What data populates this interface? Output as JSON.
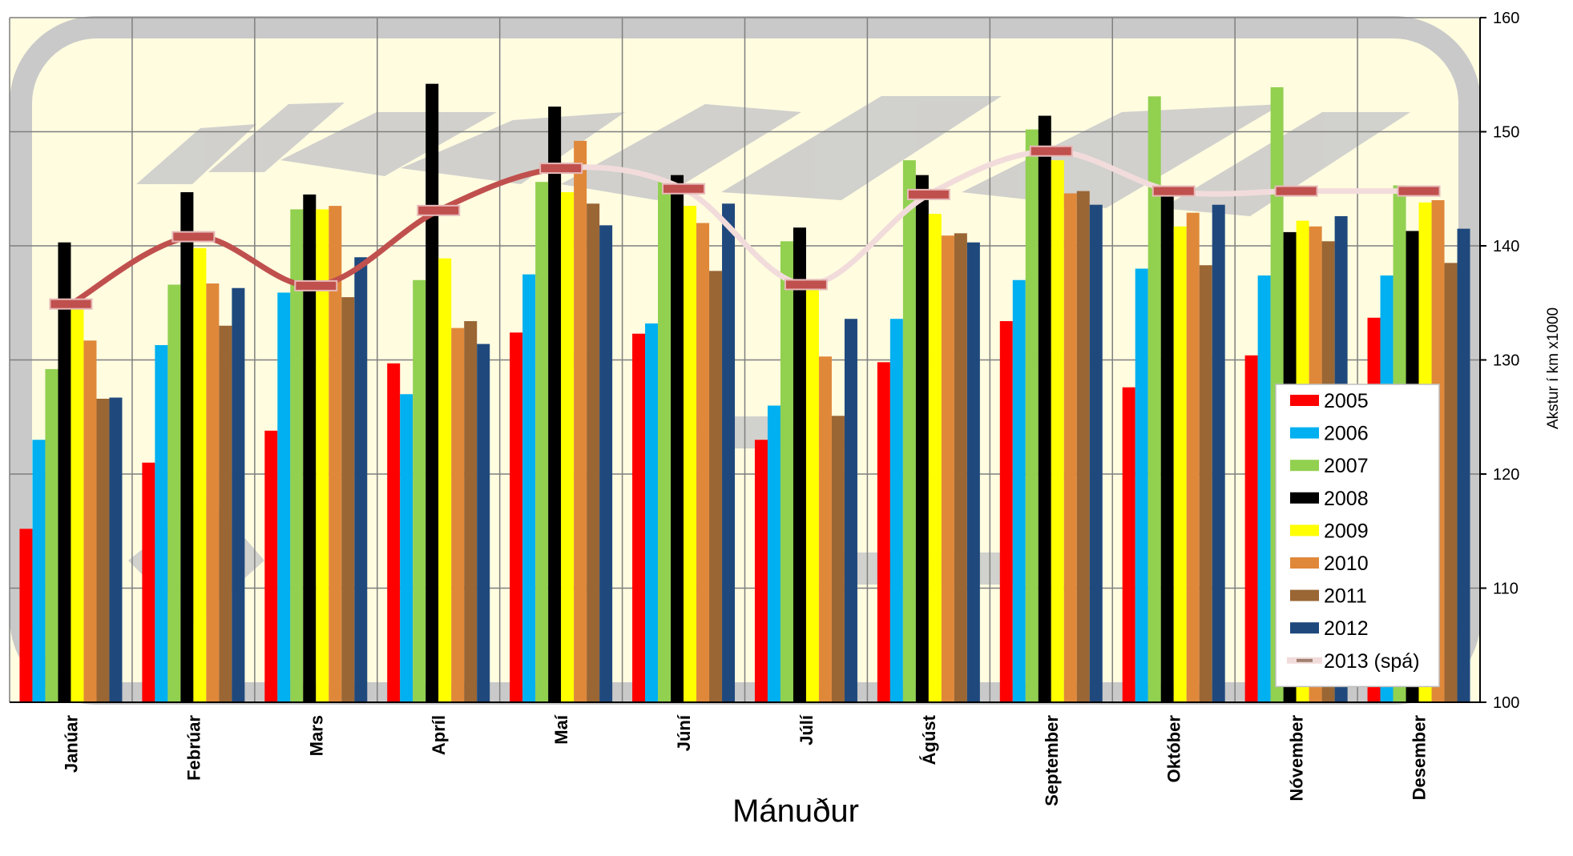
{
  "chart_data": {
    "type": "bar",
    "categories": [
      "Janúar",
      "Febrúar",
      "Mars",
      "Apríl",
      "Maí",
      "Júní",
      "Júlí",
      "Ágúst",
      "September",
      "Október",
      "Nóvember",
      "Desember"
    ],
    "series": [
      {
        "name": "2005",
        "color": "#ff0000",
        "values": [
          115.2,
          121.0,
          123.8,
          129.7,
          132.4,
          132.3,
          123.0,
          129.8,
          133.4,
          127.6,
          130.4,
          133.7
        ]
      },
      {
        "name": "2006",
        "color": "#00b0f0",
        "values": [
          123.0,
          131.3,
          135.9,
          127.0,
          137.5,
          133.2,
          126.0,
          133.6,
          137.0,
          138.0,
          137.4,
          137.4
        ]
      },
      {
        "name": "2007",
        "color": "#92d050",
        "values": [
          129.2,
          136.6,
          143.2,
          137.0,
          145.6,
          145.6,
          140.4,
          147.5,
          150.2,
          153.1,
          153.9,
          145.3
        ]
      },
      {
        "name": "2008",
        "color": "#000000",
        "values": [
          140.3,
          144.7,
          144.5,
          154.2,
          152.2,
          146.2,
          141.6,
          146.2,
          151.4,
          145.2,
          141.2,
          141.3
        ]
      },
      {
        "name": "2009",
        "color": "#ffff00",
        "values": [
          135.0,
          139.8,
          143.2,
          138.9,
          144.7,
          143.5,
          136.5,
          142.8,
          147.5,
          141.7,
          142.2,
          143.8
        ]
      },
      {
        "name": "2010",
        "color": "#e0883a",
        "values": [
          131.7,
          136.7,
          143.5,
          132.8,
          149.2,
          142.0,
          130.3,
          140.9,
          144.6,
          142.9,
          141.7,
          144.0
        ]
      },
      {
        "name": "2011",
        "color": "#9a6634",
        "values": [
          126.6,
          133.0,
          135.5,
          133.4,
          143.7,
          137.8,
          125.1,
          141.1,
          144.8,
          138.3,
          140.4,
          138.5
        ]
      },
      {
        "name": "2012",
        "color": "#1f497d",
        "values": [
          126.7,
          136.3,
          139.0,
          131.4,
          141.8,
          143.7,
          133.6,
          140.3,
          143.6,
          143.6,
          142.6,
          141.5
        ]
      }
    ],
    "forecast": {
      "name": "2013 (spá)",
      "values": [
        134.9,
        140.8,
        136.5,
        143.1,
        146.8,
        145.0,
        136.6,
        144.5,
        148.3,
        144.8,
        144.8,
        144.8
      ]
    },
    "xlabel": "Mánuður",
    "ylabel": "Akstur í km x1000",
    "ylim": [
      100,
      160
    ],
    "yticks": [
      100,
      110,
      120,
      130,
      140,
      150,
      160
    ],
    "y_axis_side": "right",
    "grid": true,
    "legend_position": "lower-right",
    "colors": {
      "plot_background": "#fffce0",
      "grid": "#7f7f7f",
      "forecast_solid": "#c0504d",
      "forecast_light": "#f2dcdb",
      "watermark": "#c9c9c9"
    }
  }
}
